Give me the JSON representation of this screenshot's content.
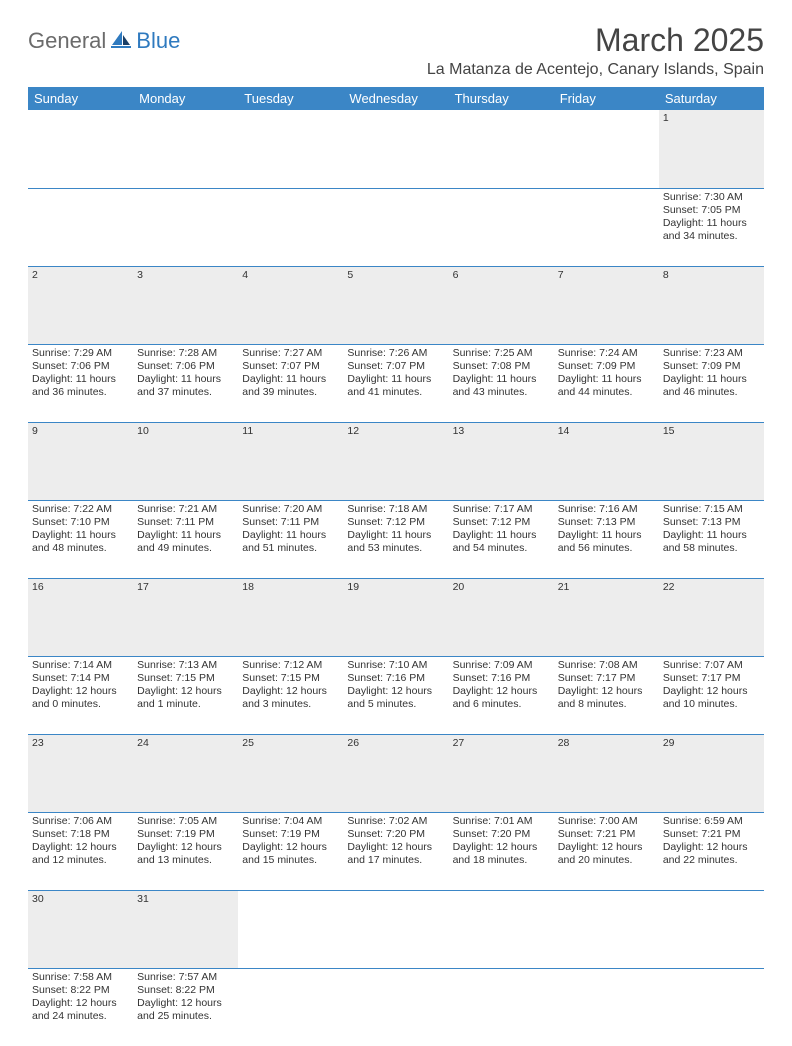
{
  "logo": {
    "word1": "General",
    "word2": "Blue"
  },
  "title": "March 2025",
  "location": "La Matanza de Acentejo, Canary Islands, Spain",
  "dayHeaders": [
    "Sunday",
    "Monday",
    "Tuesday",
    "Wednesday",
    "Thursday",
    "Friday",
    "Saturday"
  ],
  "colors": {
    "headerBg": "#3b86c6",
    "headerText": "#ffffff",
    "daynumBg": "#ededed",
    "border": "#3b86c6",
    "logoGray": "#6b6b6b",
    "logoBlue": "#2f7abf"
  },
  "weeks": [
    [
      null,
      null,
      null,
      null,
      null,
      null,
      {
        "n": "1",
        "sr": "Sunrise: 7:30 AM",
        "ss": "Sunset: 7:05 PM",
        "dl": "Daylight: 11 hours and 34 minutes."
      }
    ],
    [
      {
        "n": "2",
        "sr": "Sunrise: 7:29 AM",
        "ss": "Sunset: 7:06 PM",
        "dl": "Daylight: 11 hours and 36 minutes."
      },
      {
        "n": "3",
        "sr": "Sunrise: 7:28 AM",
        "ss": "Sunset: 7:06 PM",
        "dl": "Daylight: 11 hours and 37 minutes."
      },
      {
        "n": "4",
        "sr": "Sunrise: 7:27 AM",
        "ss": "Sunset: 7:07 PM",
        "dl": "Daylight: 11 hours and 39 minutes."
      },
      {
        "n": "5",
        "sr": "Sunrise: 7:26 AM",
        "ss": "Sunset: 7:07 PM",
        "dl": "Daylight: 11 hours and 41 minutes."
      },
      {
        "n": "6",
        "sr": "Sunrise: 7:25 AM",
        "ss": "Sunset: 7:08 PM",
        "dl": "Daylight: 11 hours and 43 minutes."
      },
      {
        "n": "7",
        "sr": "Sunrise: 7:24 AM",
        "ss": "Sunset: 7:09 PM",
        "dl": "Daylight: 11 hours and 44 minutes."
      },
      {
        "n": "8",
        "sr": "Sunrise: 7:23 AM",
        "ss": "Sunset: 7:09 PM",
        "dl": "Daylight: 11 hours and 46 minutes."
      }
    ],
    [
      {
        "n": "9",
        "sr": "Sunrise: 7:22 AM",
        "ss": "Sunset: 7:10 PM",
        "dl": "Daylight: 11 hours and 48 minutes."
      },
      {
        "n": "10",
        "sr": "Sunrise: 7:21 AM",
        "ss": "Sunset: 7:11 PM",
        "dl": "Daylight: 11 hours and 49 minutes."
      },
      {
        "n": "11",
        "sr": "Sunrise: 7:20 AM",
        "ss": "Sunset: 7:11 PM",
        "dl": "Daylight: 11 hours and 51 minutes."
      },
      {
        "n": "12",
        "sr": "Sunrise: 7:18 AM",
        "ss": "Sunset: 7:12 PM",
        "dl": "Daylight: 11 hours and 53 minutes."
      },
      {
        "n": "13",
        "sr": "Sunrise: 7:17 AM",
        "ss": "Sunset: 7:12 PM",
        "dl": "Daylight: 11 hours and 54 minutes."
      },
      {
        "n": "14",
        "sr": "Sunrise: 7:16 AM",
        "ss": "Sunset: 7:13 PM",
        "dl": "Daylight: 11 hours and 56 minutes."
      },
      {
        "n": "15",
        "sr": "Sunrise: 7:15 AM",
        "ss": "Sunset: 7:13 PM",
        "dl": "Daylight: 11 hours and 58 minutes."
      }
    ],
    [
      {
        "n": "16",
        "sr": "Sunrise: 7:14 AM",
        "ss": "Sunset: 7:14 PM",
        "dl": "Daylight: 12 hours and 0 minutes."
      },
      {
        "n": "17",
        "sr": "Sunrise: 7:13 AM",
        "ss": "Sunset: 7:15 PM",
        "dl": "Daylight: 12 hours and 1 minute."
      },
      {
        "n": "18",
        "sr": "Sunrise: 7:12 AM",
        "ss": "Sunset: 7:15 PM",
        "dl": "Daylight: 12 hours and 3 minutes."
      },
      {
        "n": "19",
        "sr": "Sunrise: 7:10 AM",
        "ss": "Sunset: 7:16 PM",
        "dl": "Daylight: 12 hours and 5 minutes."
      },
      {
        "n": "20",
        "sr": "Sunrise: 7:09 AM",
        "ss": "Sunset: 7:16 PM",
        "dl": "Daylight: 12 hours and 6 minutes."
      },
      {
        "n": "21",
        "sr": "Sunrise: 7:08 AM",
        "ss": "Sunset: 7:17 PM",
        "dl": "Daylight: 12 hours and 8 minutes."
      },
      {
        "n": "22",
        "sr": "Sunrise: 7:07 AM",
        "ss": "Sunset: 7:17 PM",
        "dl": "Daylight: 12 hours and 10 minutes."
      }
    ],
    [
      {
        "n": "23",
        "sr": "Sunrise: 7:06 AM",
        "ss": "Sunset: 7:18 PM",
        "dl": "Daylight: 12 hours and 12 minutes."
      },
      {
        "n": "24",
        "sr": "Sunrise: 7:05 AM",
        "ss": "Sunset: 7:19 PM",
        "dl": "Daylight: 12 hours and 13 minutes."
      },
      {
        "n": "25",
        "sr": "Sunrise: 7:04 AM",
        "ss": "Sunset: 7:19 PM",
        "dl": "Daylight: 12 hours and 15 minutes."
      },
      {
        "n": "26",
        "sr": "Sunrise: 7:02 AM",
        "ss": "Sunset: 7:20 PM",
        "dl": "Daylight: 12 hours and 17 minutes."
      },
      {
        "n": "27",
        "sr": "Sunrise: 7:01 AM",
        "ss": "Sunset: 7:20 PM",
        "dl": "Daylight: 12 hours and 18 minutes."
      },
      {
        "n": "28",
        "sr": "Sunrise: 7:00 AM",
        "ss": "Sunset: 7:21 PM",
        "dl": "Daylight: 12 hours and 20 minutes."
      },
      {
        "n": "29",
        "sr": "Sunrise: 6:59 AM",
        "ss": "Sunset: 7:21 PM",
        "dl": "Daylight: 12 hours and 22 minutes."
      }
    ],
    [
      {
        "n": "30",
        "sr": "Sunrise: 7:58 AM",
        "ss": "Sunset: 8:22 PM",
        "dl": "Daylight: 12 hours and 24 minutes."
      },
      {
        "n": "31",
        "sr": "Sunrise: 7:57 AM",
        "ss": "Sunset: 8:22 PM",
        "dl": "Daylight: 12 hours and 25 minutes."
      },
      null,
      null,
      null,
      null,
      null
    ]
  ]
}
